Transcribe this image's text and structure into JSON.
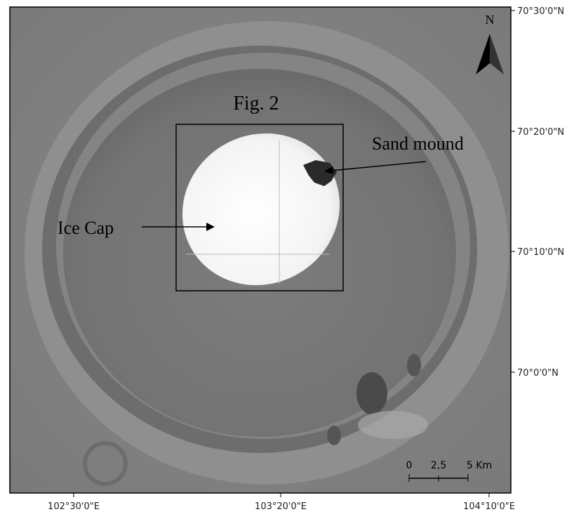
{
  "map": {
    "labels": {
      "figure": "Fig. 2",
      "sand_mound": "Sand mound",
      "ice_cap": "Ice Cap",
      "north": "N"
    },
    "latitude_labels": [
      "70°30'0\"N",
      "70°20'0\"N",
      "70°10'0\"N",
      "70°0'0\"N"
    ],
    "longitude_labels": [
      "102°30'0\"E",
      "103°20'0\"E",
      "104°10'0\"E"
    ],
    "scale_bar": [
      "0",
      "2,5",
      "5 Km"
    ]
  }
}
